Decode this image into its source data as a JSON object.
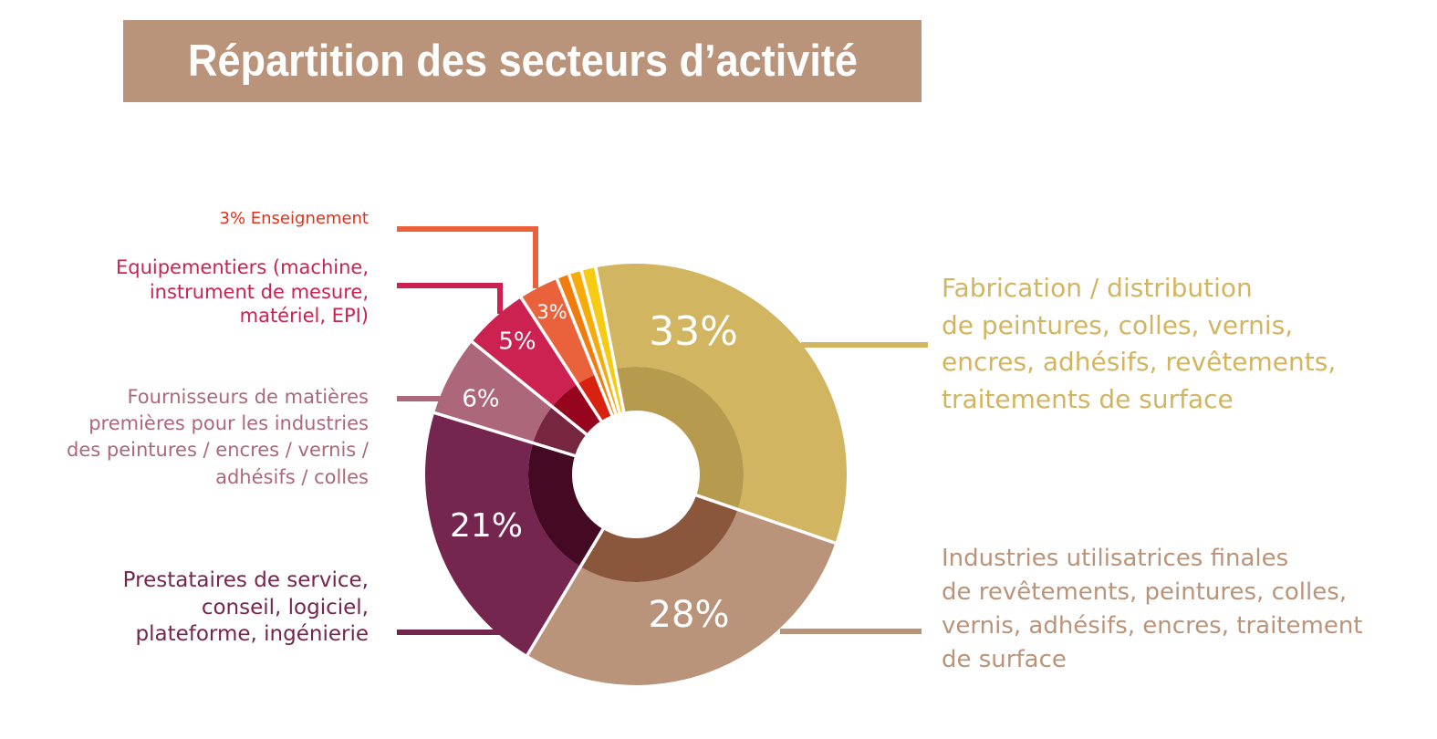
{
  "title": "Répartition des secteurs d’activité",
  "colors": {
    "title_bg": "#b9937a",
    "background": "#ffffff"
  },
  "chart_data": {
    "type": "pie",
    "variant": "donut",
    "title": "Répartition des secteurs d’activité",
    "unit": "%",
    "slices": [
      {
        "label": "Fabrication / distribution\nde peintures, colles, vernis,\nencres, adhésifs, revêtements,\ntraitements de surface",
        "value": 33,
        "value_label": "33%",
        "color": "#d1b560",
        "inner_color": "#b69a4e",
        "label_color": "#d1b560"
      },
      {
        "label": "Industries utilisatrices finales\nde revêtements, peintures, colles,\nvernis, adhésifs, encres, traitement\nde surface",
        "value": 28,
        "value_label": "28%",
        "color": "#ba947a",
        "inner_color": "#8a573c",
        "label_color": "#ba947a"
      },
      {
        "label": "Prestataires de service,\nconseil, logiciel,\nplateforme, ingénierie",
        "value": 21,
        "value_label": "21%",
        "color": "#74264e",
        "inner_color": "#440a24",
        "label_color": "#74264e"
      },
      {
        "label": "Fournisseurs de matières\npremières pour les industries\ndes peintures / encres / vernis /\nadhésifs / colles",
        "value": 6,
        "value_label": "6%",
        "color": "#ad677b",
        "inner_color": "#76263e",
        "label_color": "#ad677b"
      },
      {
        "label": "Equipementiers (machine,\ninstrument de mesure,\nmatériel, EPI)",
        "value": 5,
        "value_label": "5%",
        "color": "#cb2251",
        "inner_color": "#96051e",
        "label_color": "#cb2251"
      },
      {
        "label": "3% Enseignement",
        "value": 3,
        "value_label": "3%",
        "color": "#ea623c",
        "inner_color": "#d8210f",
        "label_color": "#e3301a"
      },
      {
        "label": "",
        "value": 1,
        "value_label": "",
        "color": "#ef7c0e",
        "inner_color": "#ef7c0e",
        "label_color": ""
      },
      {
        "label": "",
        "value": 1,
        "value_label": "",
        "color": "#f7ab0a",
        "inner_color": "#f7ab0a",
        "label_color": ""
      },
      {
        "label": "",
        "value": 1,
        "value_label": "",
        "color": "#f6cb12",
        "inner_color": "#f6cb12",
        "label_color": ""
      }
    ],
    "legend": "callout-labels"
  }
}
